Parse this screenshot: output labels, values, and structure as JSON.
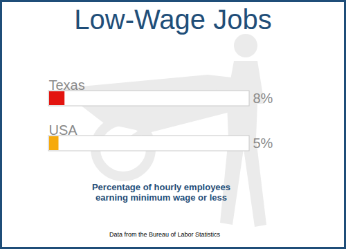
{
  "chart_data": {
    "type": "bar",
    "orientation": "horizontal",
    "title": "Low-Wage Jobs",
    "categories": [
      "Texas",
      "USA"
    ],
    "values": [
      8,
      5
    ],
    "value_labels": [
      "8%",
      "5%"
    ],
    "colors": [
      "#e3140f",
      "#f6aa0c"
    ],
    "data_labels": true,
    "xlim": [
      0,
      100
    ],
    "caption": "Percentage of hourly employees earning minimum wage or less",
    "source": "Data from the Bureau of Labor Statistics"
  }
}
